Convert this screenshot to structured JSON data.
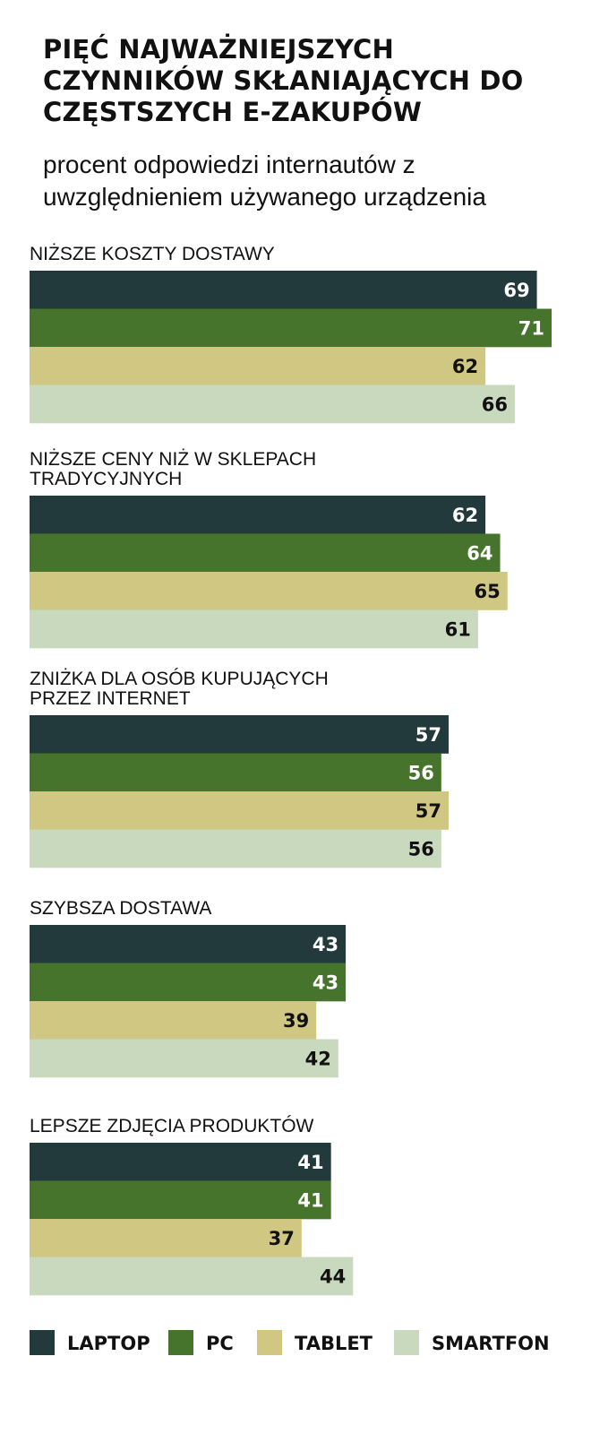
{
  "chart_data": {
    "type": "bar",
    "orientation": "horizontal",
    "title": "PIĘĆ NAJWAŻNIEJSZYCH CZYNNIKÓW SKŁANIAJĄCYCH DO CZĘSTSZYCH E-ZAKUPÓW",
    "subtitle": "procent odpowiedzi internautów z uwzględnieniem używanego urządzenia",
    "categories": [
      "NIŻSZE KOSZTY DOSTAWY",
      "NIŻSZE CENY NIŻ W SKLEPACH TRADYCYJNYCH",
      "ZNIŻKA DLA OSÓB KUPUJĄCYCH PRZEZ INTERNET",
      "SZYBSZA DOSTAWA",
      "LEPSZE ZDJĘCIA PRODUKTÓW"
    ],
    "category_lines": [
      [
        "NIŻSZE KOSZTY DOSTAWY"
      ],
      [
        "NIŻSZE CENY NIŻ W SKLEPACH",
        "TRADYCYJNYCH"
      ],
      [
        "ZNIŻKA DLA OSÓB KUPUJĄCYCH",
        "PRZEZ INTERNET"
      ],
      [
        "SZYBSZA DOSTAWA"
      ],
      [
        "LEPSZE ZDJĘCIA PRODUKTÓW"
      ]
    ],
    "series": [
      {
        "name": "LAPTOP",
        "color": "#233a3d",
        "label_color": "#ffffff",
        "values": [
          69,
          62,
          57,
          43,
          41
        ]
      },
      {
        "name": "PC",
        "color": "#47742c",
        "label_color": "#ffffff",
        "values": [
          71,
          64,
          56,
          43,
          41
        ]
      },
      {
        "name": "TABLET",
        "color": "#cfc782",
        "label_color": "#111111",
        "values": [
          62,
          65,
          57,
          39,
          37
        ]
      },
      {
        "name": "SMARTFON",
        "color": "#c9d9bd",
        "label_color": "#111111",
        "values": [
          66,
          61,
          56,
          42,
          44
        ]
      }
    ],
    "xlim": [
      0,
      71
    ],
    "grid": false,
    "legend_position": "bottom"
  }
}
